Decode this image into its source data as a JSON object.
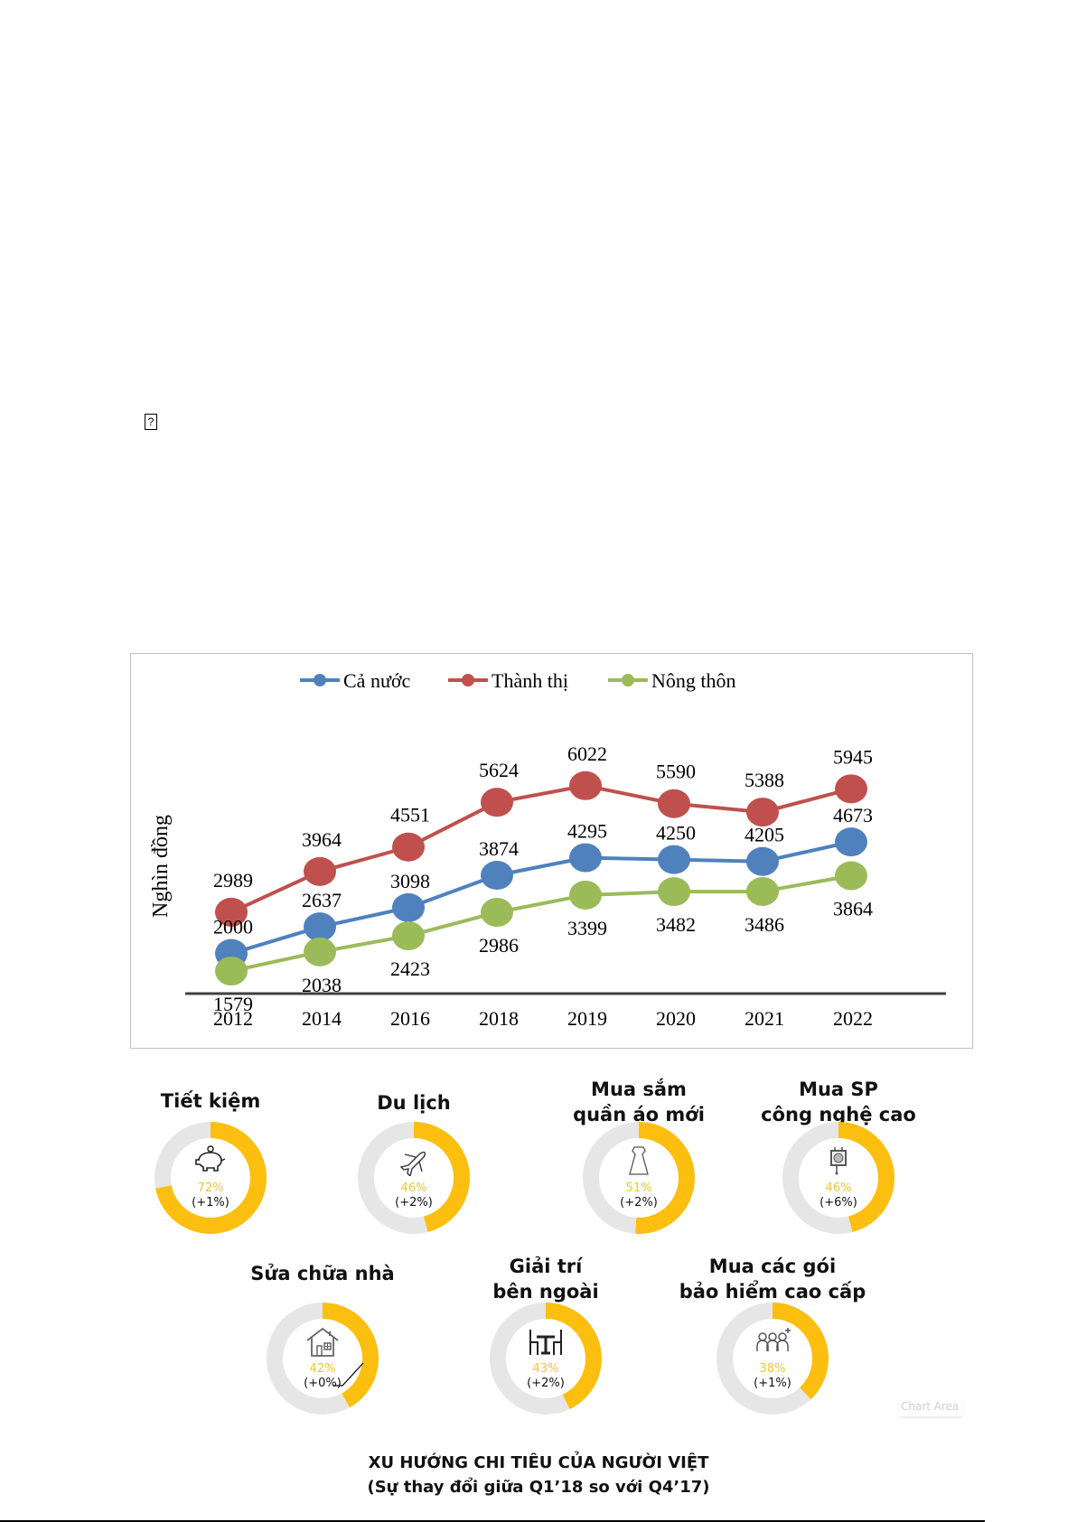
{
  "missing_glyph": "?",
  "chart_data": [
    {
      "type": "line",
      "title": "",
      "xlabel": "",
      "ylabel": "Nghìn đồng",
      "categories": [
        "2012",
        "2014",
        "2016",
        "2018",
        "2019",
        "2020",
        "2021",
        "2022"
      ],
      "series": [
        {
          "name": "Cả nước",
          "color": "#4f81bd",
          "values": [
            2000,
            2637,
            3098,
            3874,
            4295,
            4250,
            4205,
            4673
          ]
        },
        {
          "name": "Thành thị",
          "color": "#c0504d",
          "values": [
            2989,
            3964,
            4551,
            5624,
            6022,
            5590,
            5388,
            5945
          ]
        },
        {
          "name": "Nông thôn",
          "color": "#9bbb59",
          "values": [
            1579,
            2038,
            2423,
            2986,
            3399,
            3482,
            3486,
            3864
          ]
        }
      ],
      "ylim": [
        0,
        6500
      ],
      "grid": false,
      "legend_position": "top"
    },
    {
      "type": "pie",
      "variant": "donut",
      "title": "XU HƯỚNG CHI TIÊU CỦA NGƯỜI VIỆT",
      "subtitle": "(Sự thay đổi giữa Q1’18 so với Q4’17)",
      "colors": {
        "filled": "#fcbf0f",
        "remainder": "#e6e6e6"
      },
      "items": [
        {
          "label": "Tiết kiệm",
          "value": 72,
          "value_label": "72%",
          "change": "(+1%)",
          "icon": "piggy-bank-icon"
        },
        {
          "label": "Du lịch",
          "value": 46,
          "value_label": "46%",
          "change": "(+2%)",
          "icon": "airplane-icon"
        },
        {
          "label": "Mua sắm\nquần áo mới",
          "label_lines": [
            "Mua sắm",
            "quần áo mới"
          ],
          "value": 51,
          "value_label": "51%",
          "change": "(+2%)",
          "icon": "dress-icon"
        },
        {
          "label": "Mua SP\ncông nghệ cao",
          "label_lines": [
            "Mua SP",
            "công nghệ cao"
          ],
          "value": 46,
          "value_label": "46%",
          "change": "(+6%)",
          "icon": "chip-icon"
        },
        {
          "label": "Sửa chữa nhà",
          "value": 42,
          "value_label": "42%",
          "change": "(+0%)",
          "icon": "house-icon"
        },
        {
          "label": "Giải trí\nbên ngoài",
          "label_lines": [
            "Giải trí",
            "bên ngoài"
          ],
          "value": 43,
          "value_label": "43%",
          "change": "(+2%)",
          "icon": "dining-table-icon"
        },
        {
          "label": "Mua các gói\nbảo hiểm cao cấp",
          "label_lines": [
            "Mua các gói",
            "bảo hiểm cao cấp"
          ],
          "value": 38,
          "value_label": "38%",
          "change": "(+1%)",
          "icon": "family-insurance-icon"
        }
      ]
    }
  ],
  "tooltip": "Chart Area"
}
